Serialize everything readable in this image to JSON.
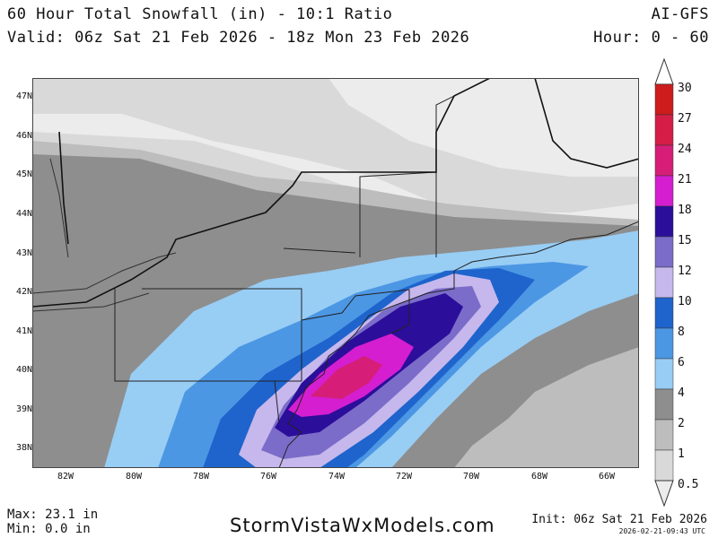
{
  "header": {
    "title": "60 Hour Total Snowfall (in) - 10:1 Ratio",
    "valid": "Valid: 06z Sat 21 Feb 2026 - 18z Mon 23 Feb 2026",
    "model": "AI-GFS",
    "hour": "Hour: 0 - 60"
  },
  "map": {
    "lat_labels": [
      "47N",
      "46N",
      "45N",
      "44N",
      "43N",
      "42N",
      "41N",
      "40N",
      "39N",
      "38N"
    ],
    "lon_labels": [
      "82W",
      "80W",
      "78W",
      "76W",
      "74W",
      "72W",
      "70W",
      "68W",
      "66W"
    ]
  },
  "colorbar": {
    "levels": [
      "30",
      "27",
      "24",
      "21",
      "18",
      "15",
      "12",
      "10",
      "8",
      "6",
      "4",
      "2",
      "1",
      "0.5"
    ],
    "colors": [
      "#cc1c1c",
      "#d41e48",
      "#d61e78",
      "#d41ecf",
      "#2b0e9a",
      "#7b6cc9",
      "#c6b8ec",
      "#1e64cc",
      "#4c97e4",
      "#98cdf4",
      "#8e8e8e",
      "#bdbdbd",
      "#d9d9d9",
      "#ececec"
    ]
  },
  "footer": {
    "max": "Max: 23.1 in",
    "min": "Min: 0.0 in",
    "site": "StormVistaWxModels.com",
    "init": "Init: 06z Sat 21 Feb 2026",
    "stamp": "2026-02-21-09:43 UTC"
  }
}
